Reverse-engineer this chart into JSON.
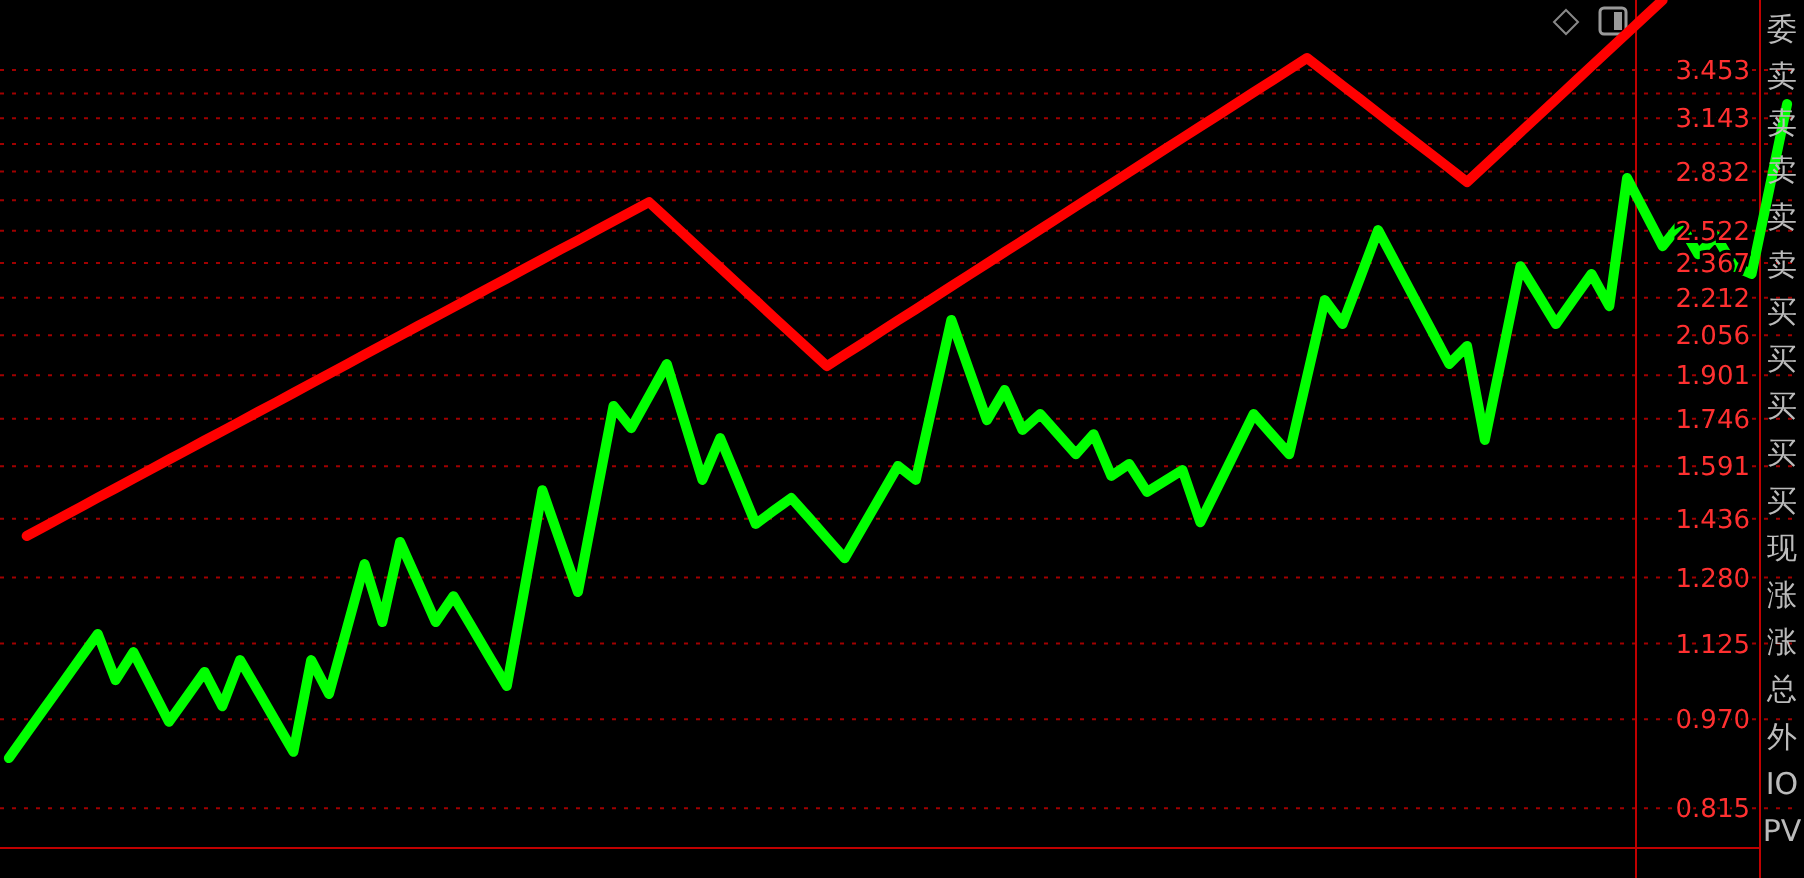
{
  "chart_data": {
    "type": "line",
    "log": "y",
    "grid": "y",
    "tick_labels": "y",
    "ylim": [
      0.754,
      3.96
    ],
    "categories": [
      null,
      null,
      null,
      null,
      null,
      null,
      null,
      null,
      null,
      null,
      null,
      null,
      null,
      null,
      null,
      null,
      null,
      null,
      null,
      null,
      null,
      null,
      null,
      null,
      null,
      null,
      null,
      null,
      null,
      null,
      null,
      null,
      null,
      null,
      null,
      null,
      null,
      null,
      null,
      null,
      null,
      null,
      null,
      null,
      null,
      null,
      null,
      null,
      null,
      null,
      null,
      null,
      null,
      null,
      null,
      null,
      null,
      null,
      null,
      null,
      null,
      null,
      null,
      null,
      null,
      null,
      null,
      null,
      null,
      null,
      null,
      null,
      null,
      null,
      null,
      null,
      null,
      null,
      null,
      null,
      null,
      null,
      null,
      null,
      null,
      null,
      null,
      null,
      null,
      null,
      null,
      null,
      null,
      null,
      null,
      null,
      null,
      null,
      null,
      null,
      null
    ],
    "yticks": [
      {
        "value": 0.815,
        "label": "0.815"
      },
      {
        "value": 0.97,
        "label": "0.970"
      },
      {
        "value": 1.125,
        "label": "1.125"
      },
      {
        "value": 1.28,
        "label": "1.280"
      },
      {
        "value": 1.436,
        "label": "1.436"
      },
      {
        "value": 1.591,
        "label": "1.591"
      },
      {
        "value": 1.746,
        "label": "1.746"
      },
      {
        "value": 1.901,
        "label": "1.901"
      },
      {
        "value": 2.056,
        "label": "2.056"
      },
      {
        "value": 2.212,
        "label": "2.212"
      },
      {
        "value": 2.367,
        "label": "2.367"
      },
      {
        "value": 2.522,
        "label": "2.522"
      },
      {
        "value": 2.677,
        "label": null
      },
      {
        "value": 2.832,
        "label": "2.832"
      },
      {
        "value": 2.988,
        "label": null
      },
      {
        "value": 3.143,
        "label": "3.143"
      },
      {
        "value": 3.298,
        "label": null
      },
      {
        "value": 3.453,
        "label": "3.453"
      }
    ],
    "series": [
      {
        "color": "#ff0000",
        "values": [
          null,
          1.388,
          1.414,
          1.441,
          1.468,
          1.496,
          1.524,
          1.553,
          1.582,
          1.612,
          1.642,
          1.673,
          1.704,
          1.736,
          1.769,
          1.802,
          1.836,
          1.871,
          1.906,
          1.942,
          1.979,
          2.016,
          2.054,
          2.093,
          2.132,
          2.172,
          2.213,
          2.255,
          2.297,
          2.341,
          2.385,
          2.43,
          2.475,
          2.522,
          2.57,
          2.618,
          2.667,
          2.583,
          2.501,
          2.422,
          2.346,
          2.272,
          2.2,
          2.13,
          2.063,
          1.998,
          1.935,
          1.979,
          2.023,
          2.069,
          2.116,
          2.163,
          2.212,
          2.262,
          2.313,
          2.365,
          2.419,
          2.473,
          2.529,
          2.586,
          2.645,
          2.704,
          2.765,
          2.828,
          2.892,
          2.957,
          3.024,
          3.092,
          3.161,
          3.233,
          3.306,
          3.38,
          3.457,
          3.535,
          3.441,
          3.349,
          3.261,
          3.174,
          3.089,
          3.007,
          2.928,
          2.85,
          2.774,
          2.865,
          2.959,
          3.057,
          3.157,
          3.261,
          3.368,
          3.479,
          3.594,
          3.712,
          3.834,
          3.96,
          null,
          null,
          null,
          null,
          null,
          null,
          null
        ]
      },
      {
        "color": "#00ff00",
        "values": [
          0.899,
          0.944,
          0.991,
          1.04,
          1.092,
          1.146,
          1.047,
          1.106,
          1.033,
          0.965,
          1.013,
          1.064,
          0.995,
          1.089,
          1.026,
          0.966,
          0.91,
          1.089,
          1.019,
          1.157,
          1.314,
          1.173,
          1.372,
          1.269,
          1.173,
          1.234,
          1.164,
          1.097,
          1.035,
          1.253,
          1.518,
          1.374,
          1.244,
          1.492,
          1.79,
          1.714,
          1.825,
          1.943,
          1.735,
          1.549,
          1.681,
          1.546,
          1.421,
          1.458,
          1.495,
          1.438,
          1.382,
          1.329,
          1.411,
          1.499,
          1.592,
          1.549,
          1.811,
          2.118,
          1.92,
          1.741,
          1.847,
          1.708,
          1.762,
          1.694,
          1.629,
          1.694,
          1.561,
          1.598,
          1.513,
          1.546,
          1.579,
          1.426,
          1.53,
          1.642,
          1.762,
          1.694,
          1.629,
          1.894,
          2.202,
          2.101,
          2.303,
          2.525,
          2.365,
          2.215,
          2.075,
          1.943,
          2.013,
          1.675,
          1.985,
          2.353,
          2.224,
          2.101,
          2.207,
          2.317,
          2.176,
          2.796,
          2.616,
          2.447,
          2.555,
          2.409,
          2.496,
          2.353,
          2.317,
          2.736,
          3.231
        ]
      }
    ],
    "annotations": [
      "委",
      "卖",
      "卖",
      "卖",
      "卖",
      "卖",
      "买",
      "买",
      "买",
      "买",
      "买",
      "现",
      "涨",
      "涨",
      "总",
      "外",
      "IO",
      "PV"
    ]
  }
}
